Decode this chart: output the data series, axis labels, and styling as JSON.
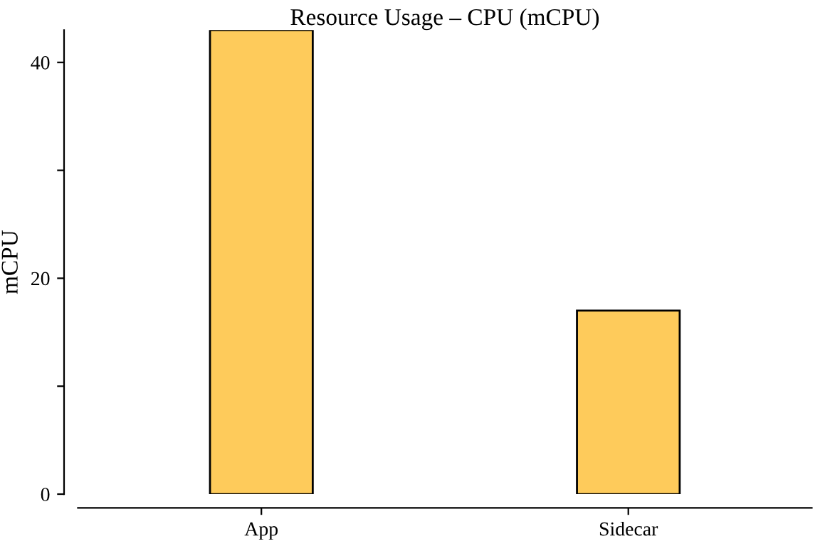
{
  "chart_data": {
    "type": "bar",
    "title": "Resource Usage – CPU (mCPU)",
    "ylabel": "mCPU",
    "categories": [
      "App",
      "Sidecar"
    ],
    "series": [
      {
        "color": "#fecb5b",
        "values": [
          43,
          17
        ]
      }
    ],
    "ylim": [
      0,
      43
    ],
    "yticks": [
      0,
      {
        "value": 10,
        "label": null
      },
      20,
      {
        "value": 30,
        "label": null
      },
      40
    ],
    "grid": false,
    "legend": false
  }
}
